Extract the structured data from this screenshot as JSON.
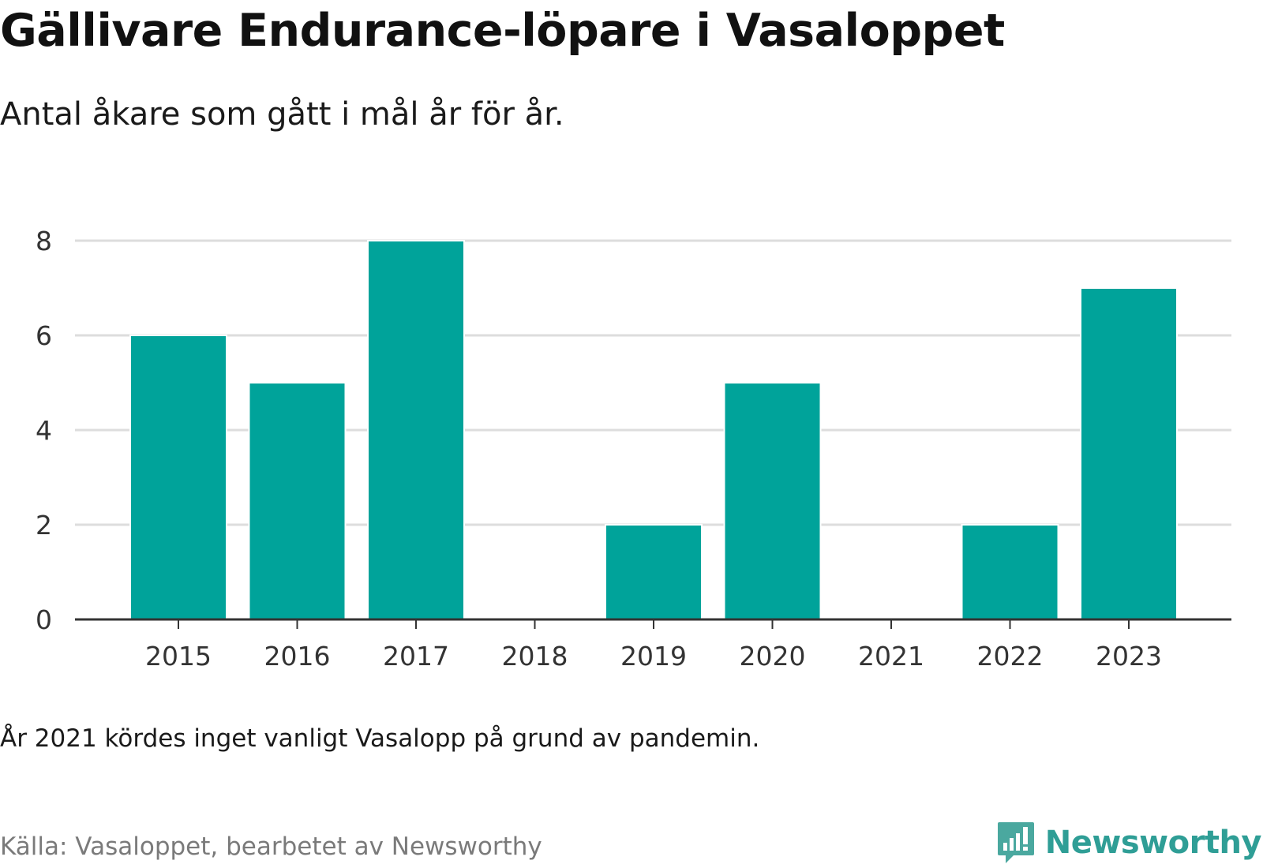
{
  "header": {
    "title": "Gällivare Endurance-löpare i Vasaloppet",
    "subtitle": "Antal åkare som gått i mål år för år."
  },
  "footer": {
    "note": "År 2021 kördes inget vanligt Vasalopp på grund av pandemin.",
    "source": "Källa: Vasaloppet, bearbetet av Newsworthy",
    "logo_text": "Newsworthy",
    "logo_icon": "bar-chart-speech-bubble-icon"
  },
  "colors": {
    "bar": "#00a39a",
    "grid": "#dddddd",
    "axis": "#333333",
    "logo": "#2f9e96"
  },
  "chart_data": {
    "type": "bar",
    "categories": [
      "2015",
      "2016",
      "2017",
      "2018",
      "2019",
      "2020",
      "2021",
      "2022",
      "2023"
    ],
    "values": [
      6,
      5,
      8,
      0,
      2,
      5,
      0,
      2,
      7
    ],
    "yticks": [
      "0",
      "2",
      "4",
      "6",
      "8"
    ],
    "ylim": [
      0,
      8
    ],
    "grid": true,
    "legend": "none"
  }
}
